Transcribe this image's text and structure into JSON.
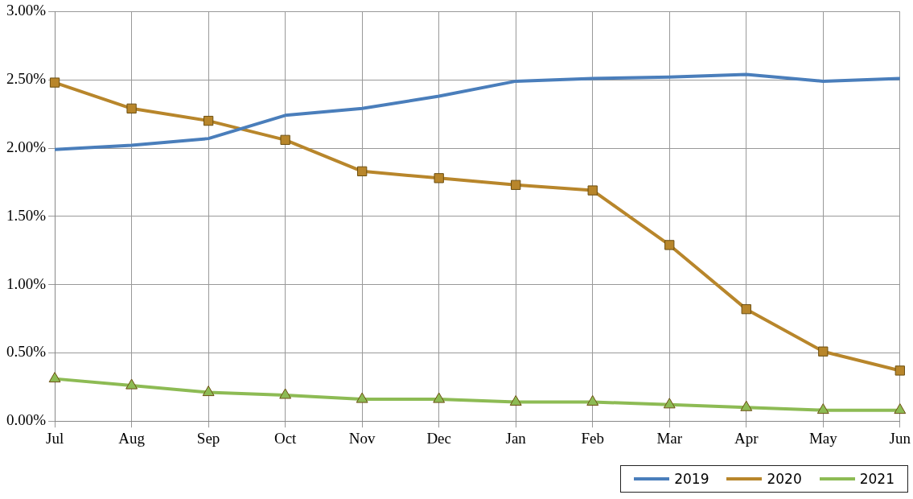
{
  "chart_data": {
    "type": "line",
    "categories": [
      "Jul",
      "Aug",
      "Sep",
      "Oct",
      "Nov",
      "Dec",
      "Jan",
      "Feb",
      "Mar",
      "Apr",
      "May",
      "Jun"
    ],
    "series": [
      {
        "name": "2019",
        "color": "#4a7ebb",
        "marker": "none",
        "values": [
          1.99,
          2.02,
          2.07,
          2.24,
          2.29,
          2.38,
          2.49,
          2.51,
          2.52,
          2.54,
          2.49,
          2.51
        ]
      },
      {
        "name": "2020",
        "color": "#b8862b",
        "marker": "square",
        "values": [
          2.48,
          2.29,
          2.2,
          2.06,
          1.83,
          1.78,
          1.73,
          1.69,
          1.29,
          0.82,
          0.51,
          0.37
        ]
      },
      {
        "name": "2021",
        "color": "#8dbb54",
        "marker": "triangle",
        "values": [
          0.31,
          0.26,
          0.21,
          0.19,
          0.16,
          0.16,
          0.14,
          0.14,
          0.12,
          0.1,
          0.08,
          0.08
        ]
      }
    ],
    "ylim": [
      0,
      3
    ],
    "yticks": [
      {
        "value": 0,
        "label": "0.00%"
      },
      {
        "value": 0.5,
        "label": "0.50%"
      },
      {
        "value": 1,
        "label": "1.00%"
      },
      {
        "value": 1.5,
        "label": "1.50%"
      },
      {
        "value": 2,
        "label": "2.00%"
      },
      {
        "value": 2.5,
        "label": "2.50%"
      },
      {
        "value": 3,
        "label": "3.00%"
      }
    ],
    "grid": true,
    "legend": "bottom right",
    "line_style": "solid"
  }
}
